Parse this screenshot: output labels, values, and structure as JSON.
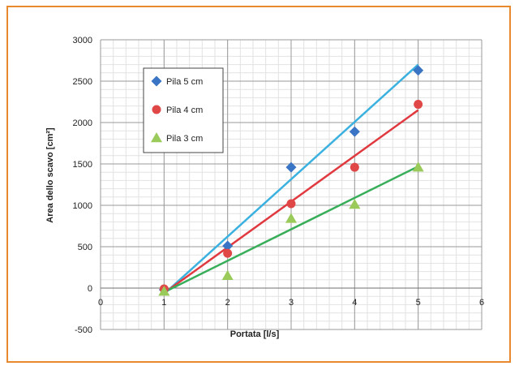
{
  "chart_data": {
    "type": "scatter",
    "title": "",
    "xlabel": "Portata [l/s]",
    "ylabel": "Area dello scavo [cm²]",
    "xlim": [
      0,
      6
    ],
    "ylim": [
      -500,
      3000
    ],
    "x_ticks": [
      0,
      1,
      2,
      3,
      4,
      5,
      6
    ],
    "y_ticks": [
      -500,
      0,
      500,
      1000,
      1500,
      2000,
      2500,
      3000
    ],
    "grid": true,
    "legend_position": "top-left",
    "series": [
      {
        "name": "Pila 5 cm",
        "marker": "diamond",
        "color": "#3a74c4",
        "trend_color": "#3bb1e0",
        "x": [
          1,
          2,
          3,
          4,
          5
        ],
        "y": [
          -20,
          510,
          1460,
          1890,
          2630
        ],
        "trendline": {
          "x": [
            1,
            5
          ],
          "y": [
            -70,
            2700
          ]
        }
      },
      {
        "name": "Pila 4 cm",
        "marker": "circle",
        "color": "#e04848",
        "trend_color": "#e0393f",
        "x": [
          1,
          2,
          3,
          4,
          5
        ],
        "y": [
          -10,
          420,
          1020,
          1460,
          2220
        ],
        "trendline": {
          "x": [
            1,
            5
          ],
          "y": [
            -60,
            2150
          ]
        }
      },
      {
        "name": "Pila 3 cm",
        "marker": "triangle",
        "color": "#9acb5a",
        "trend_color": "#39ae5a",
        "x": [
          1,
          2,
          3,
          4,
          5
        ],
        "y": [
          -40,
          150,
          840,
          1010,
          1460
        ],
        "trendline": {
          "x": [
            1,
            5
          ],
          "y": [
            -50,
            1470
          ]
        }
      }
    ]
  }
}
